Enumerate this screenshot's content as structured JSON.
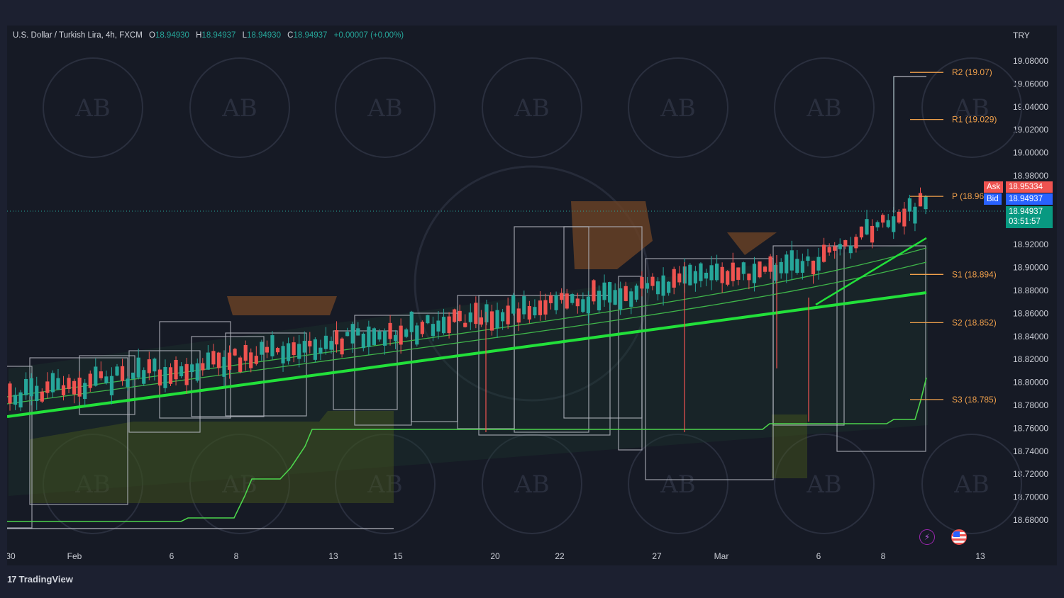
{
  "legend": {
    "symbol": "U.S. Dollar / Turkish Lira, 4h, FXCM",
    "open_label": "O",
    "open": "18.94930",
    "high_label": "H",
    "high": "18.94937",
    "low_label": "L",
    "low": "18.94930",
    "close_label": "C",
    "close": "18.94937",
    "change": "+0.00007 (+0.00%)"
  },
  "currency": "TRY",
  "branding": {
    "name": "TradingView",
    "logo_glyph": "17"
  },
  "quote": {
    "ask_label": "Ask",
    "ask": "18.95334",
    "bid_label": "Bid",
    "bid": "18.94937",
    "last": "18.94937",
    "countdown": "03:51:57"
  },
  "colors": {
    "up": "#26a69a",
    "down": "#ef5350",
    "pivot": "#f0a04b",
    "ema_main": "#22e03a",
    "ema_thin": "#3fb54a",
    "lower_band": "#4cd44c",
    "ask_bg": "#ef5350",
    "bid_bg": "#2962ff",
    "last_bg": "#089981"
  },
  "icons": {
    "flash": "lightning-icon",
    "flag": "us-flag-icon"
  },
  "chart_data": {
    "type": "candlestick",
    "ylim": [
      18.665,
      19.095
    ],
    "y_ticks": [
      "19.08000",
      "19.06000",
      "19.04000",
      "19.02000",
      "19.00000",
      "18.98000",
      "18.92000",
      "18.90000",
      "18.88000",
      "18.86000",
      "18.84000",
      "18.82000",
      "18.80000",
      "18.78000",
      "18.76000",
      "18.74000",
      "18.72000",
      "18.70000",
      "18.68000"
    ],
    "x_ticks": [
      "30",
      "Feb",
      "6",
      "8",
      "13",
      "15",
      "20",
      "22",
      "27",
      "Mar",
      "6",
      "8",
      "13"
    ],
    "pivots": [
      {
        "label": "R2 (19.07)",
        "value": 19.07
      },
      {
        "label": "R1 (19.029)",
        "value": 19.029
      },
      {
        "label": "P (18.96",
        "value": 18.962
      },
      {
        "label": "S1 (18.894)",
        "value": 18.894
      },
      {
        "label": "S2 (18.852)",
        "value": 18.852
      },
      {
        "label": "S3 (18.785)",
        "value": 18.785
      }
    ]
  }
}
